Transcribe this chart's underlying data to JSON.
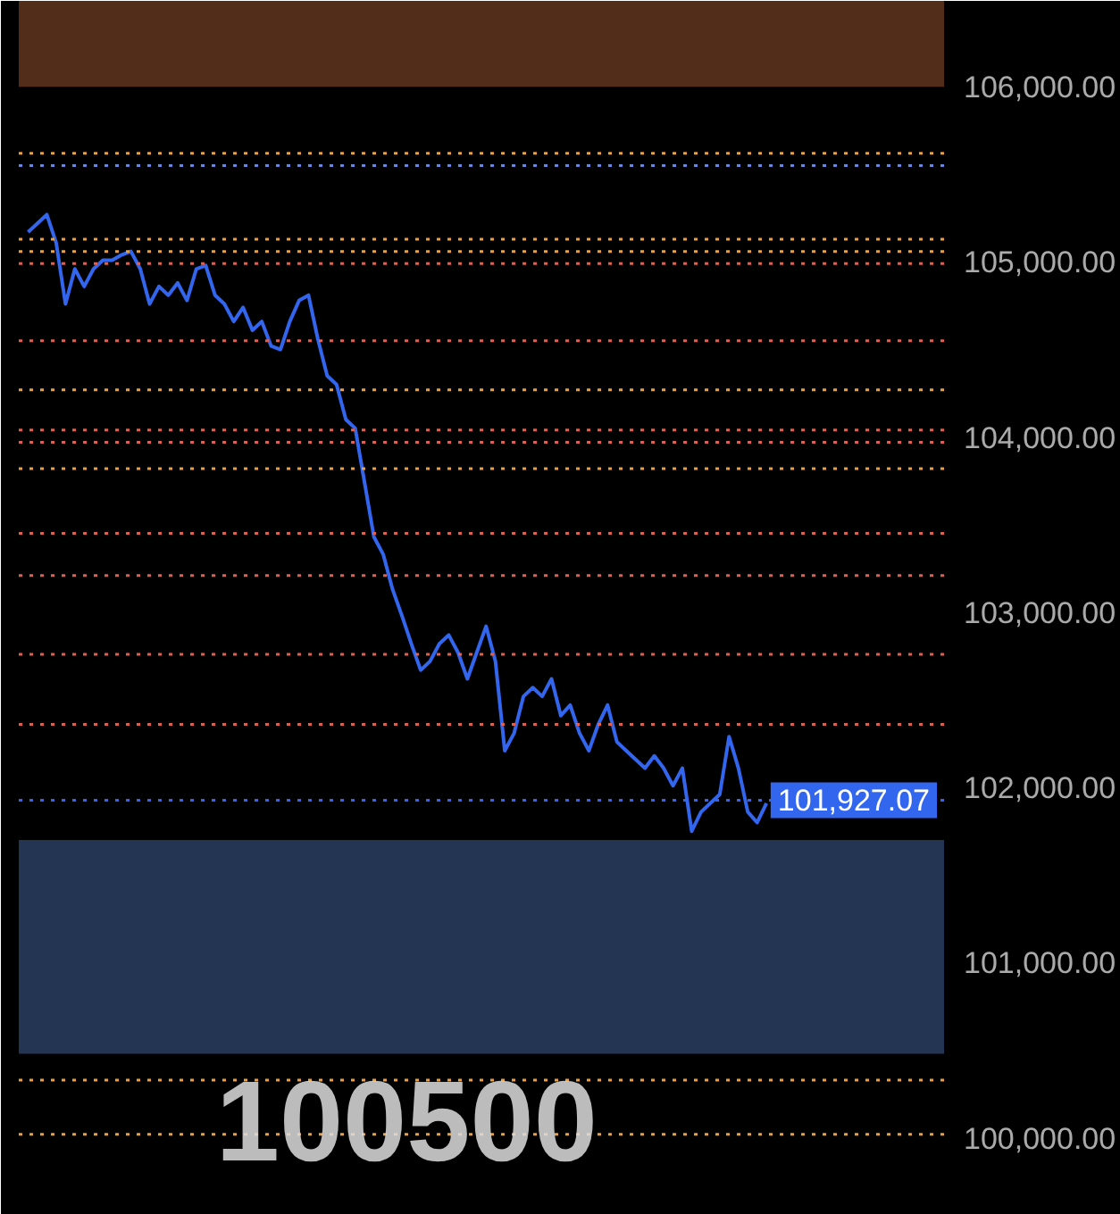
{
  "chart_data": {
    "type": "line",
    "categories": [
      null,
      null,
      null,
      null,
      null,
      null,
      null,
      null,
      null,
      null,
      null,
      null,
      null,
      null,
      null,
      null,
      null,
      null,
      null,
      null,
      null,
      null,
      null,
      null,
      null,
      null,
      null,
      null,
      null,
      null,
      null,
      null,
      null,
      null,
      null,
      null,
      null,
      null,
      null,
      null,
      null,
      null,
      null,
      null,
      null,
      null,
      null,
      null,
      null,
      null,
      null,
      null,
      null,
      null,
      null,
      null,
      null,
      null,
      null,
      null,
      null,
      null,
      null,
      null,
      null,
      null,
      null,
      null,
      null,
      null,
      null,
      null,
      null,
      null,
      null,
      null,
      null,
      null,
      null,
      null
    ],
    "series": [
      {
        "color": "#3366ee",
        "values": [
          105170,
          105220,
          105270,
          105110,
          104760,
          104960,
          104860,
          104960,
          105010,
          105010,
          105040,
          105060,
          104960,
          104760,
          104860,
          104810,
          104880,
          104780,
          104960,
          104980,
          104810,
          104760,
          104660,
          104740,
          104610,
          104660,
          104520,
          104500,
          104660,
          104780,
          104810,
          104560,
          104350,
          104300,
          104100,
          104050,
          103740,
          103430,
          103330,
          103130,
          102980,
          102820,
          102670,
          102720,
          102820,
          102870,
          102770,
          102620,
          102770,
          102920,
          102720,
          102210,
          102310,
          102520,
          102570,
          102520,
          102620,
          102410,
          102470,
          102310,
          102210,
          102360,
          102470,
          102260,
          102210,
          102160,
          102110,
          102180,
          102110,
          102010,
          102110,
          101750,
          101860,
          101910,
          101960,
          102290,
          102110,
          101860,
          101800,
          101910
        ]
      }
    ],
    "ylim": [
      99560,
      106490
    ],
    "yticks": [
      {
        "value": 100000,
        "label": "100,000.00"
      },
      {
        "value": 101000,
        "label": "101,000.00"
      },
      {
        "value": 102000,
        "label": "102,000.00"
      },
      {
        "value": 103000,
        "label": "103,000.00"
      },
      {
        "value": 104000,
        "label": "104,000.00"
      },
      {
        "value": 105000,
        "label": "105,000.00"
      },
      {
        "value": 106000,
        "label": "106,000.00"
      }
    ],
    "tick_labels": "y",
    "grid": false,
    "line_style": "solid",
    "ref_lines": [
      {
        "axis": "y",
        "value": 101927.07,
        "label": "101,927.07",
        "color": "#3366ee",
        "line_style": "dotted"
      },
      {
        "axis": "y",
        "value": 105620,
        "color": "#e8a040",
        "line_style": "dotted"
      },
      {
        "axis": "y",
        "value": 105550,
        "color": "#6688dd",
        "line_style": "dotted"
      },
      {
        "axis": "y",
        "value": 105130,
        "color": "#e8a040",
        "line_style": "dotted"
      },
      {
        "axis": "y",
        "value": 105060,
        "color": "#e8a040",
        "line_style": "dotted"
      },
      {
        "axis": "y",
        "value": 104990,
        "color": "#e06050",
        "line_style": "dotted"
      },
      {
        "axis": "y",
        "value": 104550,
        "color": "#e06050",
        "line_style": "dotted"
      },
      {
        "axis": "y",
        "value": 104270,
        "color": "#e8a040",
        "line_style": "dotted"
      },
      {
        "axis": "y",
        "value": 104040,
        "color": "#e06050",
        "line_style": "dotted"
      },
      {
        "axis": "y",
        "value": 103970,
        "color": "#e06050",
        "line_style": "dotted"
      },
      {
        "axis": "y",
        "value": 103820,
        "color": "#e8a040",
        "line_style": "dotted"
      },
      {
        "axis": "y",
        "value": 103450,
        "color": "#e06050",
        "line_style": "dotted"
      },
      {
        "axis": "y",
        "value": 103210,
        "color": "#e06050",
        "line_style": "dotted"
      },
      {
        "axis": "y",
        "value": 102760,
        "color": "#e06050",
        "line_style": "dotted"
      },
      {
        "axis": "y",
        "value": 102360,
        "color": "#e06050",
        "line_style": "dotted"
      },
      {
        "axis": "y",
        "value": 100330,
        "color": "#e8a040",
        "line_style": "dotted"
      },
      {
        "axis": "y",
        "value": 100020,
        "color": "#e8a040",
        "line_style": "dotted"
      }
    ],
    "bands": [
      {
        "axis": "y",
        "from": 106000,
        "to": 106490,
        "color": "#e8804a"
      },
      {
        "axis": "y",
        "from": 100480,
        "to": 101700,
        "color": "#6699ee"
      }
    ],
    "annotations": [
      "100500"
    ]
  }
}
